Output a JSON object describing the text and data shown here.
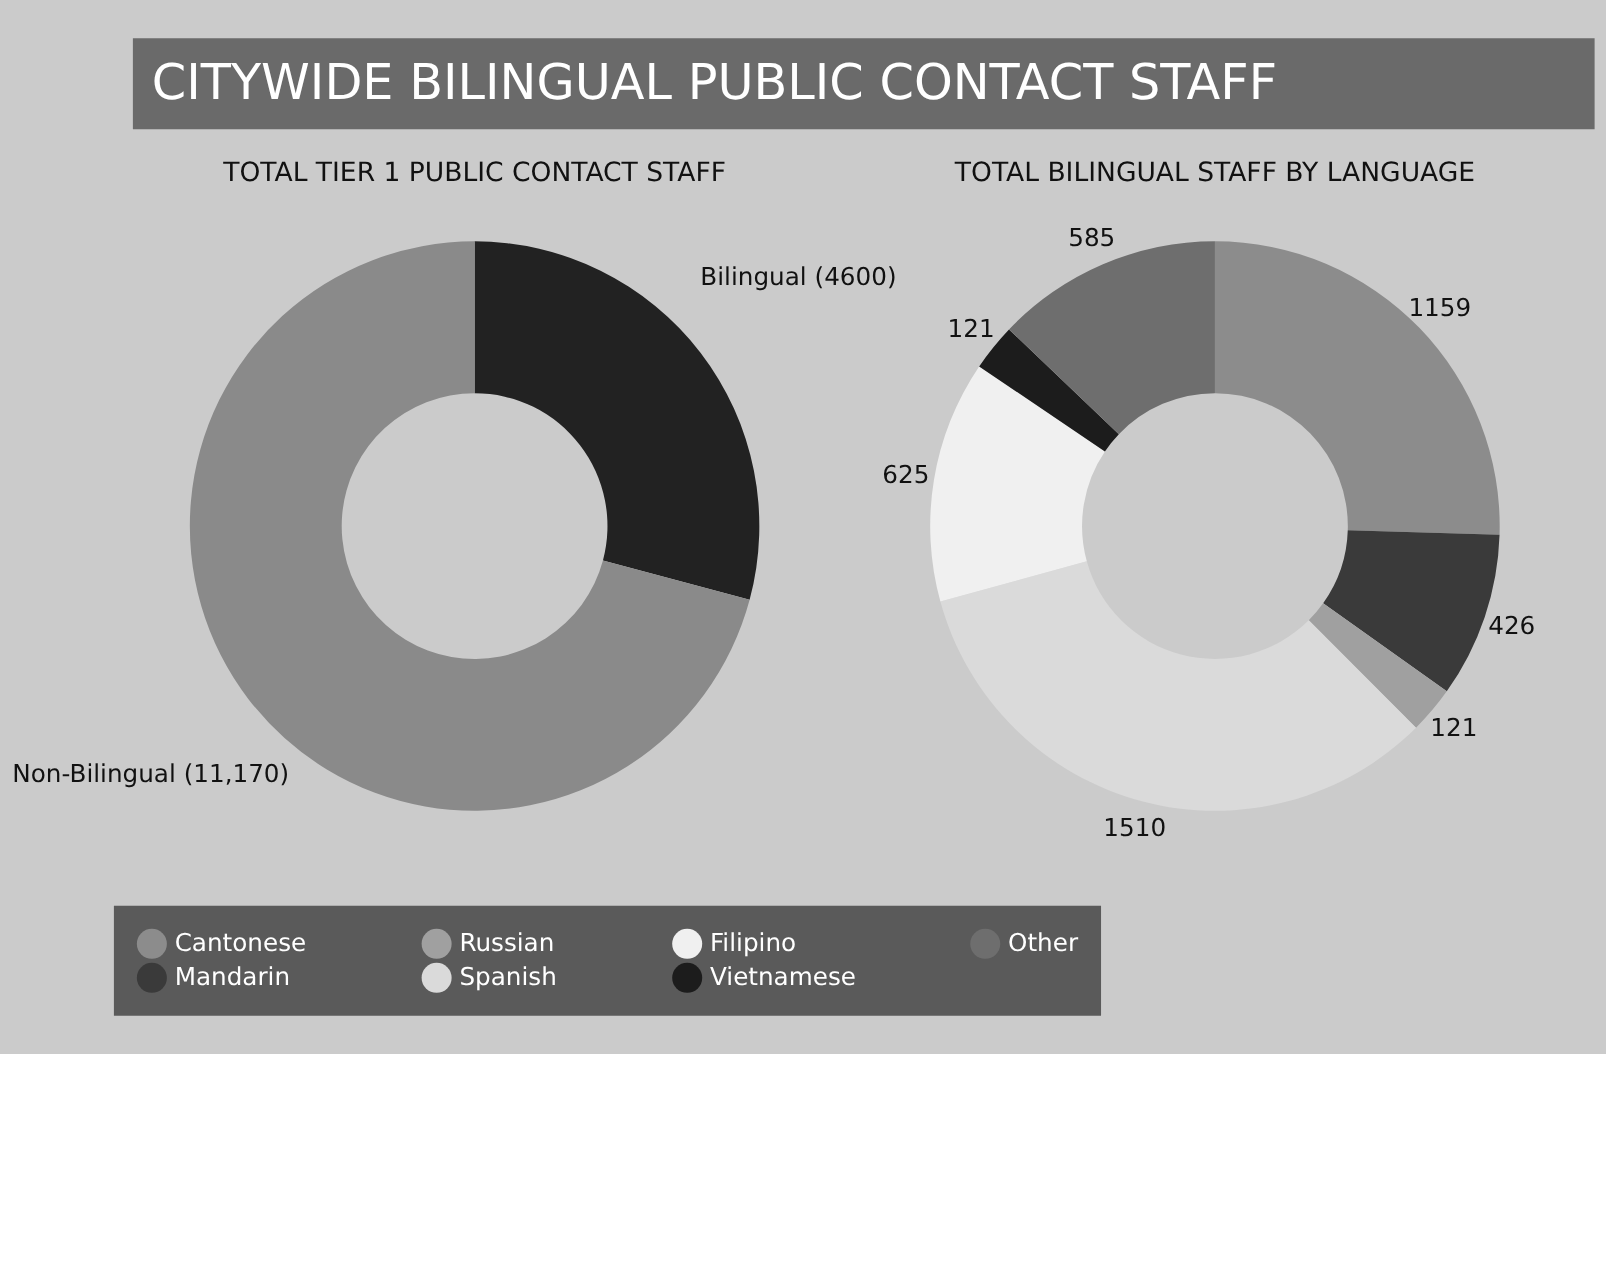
{
  "chart_data": [
    {
      "type": "donut",
      "title": "CITYWIDE BILINGUAL PUBLIC CONTACT STAFF",
      "subtitle": "TOTAL TIER 1 PUBLIC CONTACT STAFF",
      "categories": [
        "Bilingual (4600)",
        "Non-Bilingual (11,170)"
      ],
      "values": [
        4600,
        11170
      ],
      "colors": [
        "#222222",
        "#8a8a8a"
      ],
      "legend": false
    },
    {
      "type": "donut",
      "title": "TOTAL BILINGUAL STAFF BY LANGUAGE",
      "categories": [
        "Cantonese",
        "Mandarin",
        "Russian",
        "Spanish",
        "Filipino",
        "Vietnamese",
        "Other"
      ],
      "values": [
        1159,
        426,
        121,
        1510,
        625,
        121,
        585
      ],
      "colors": [
        "#8c8c8c",
        "#3a3a3a",
        "#a0a0a0",
        "#dadada",
        "#f0f0f0",
        "#1c1c1c",
        "#6e6e6e"
      ],
      "data_labels": true,
      "legend": "bottom"
    }
  ]
}
